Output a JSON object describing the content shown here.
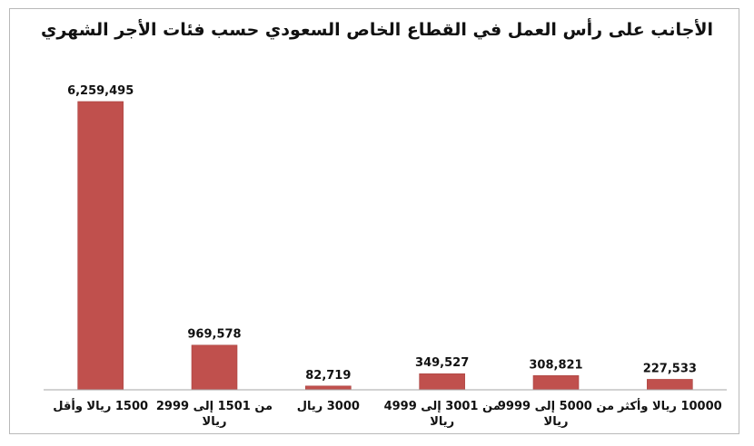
{
  "chart_data": {
    "type": "bar",
    "title": "الأجانب على رأس العمل في القطاع الخاص السعودي حسب فئات الأجر الشهري",
    "xlabel": "",
    "ylabel": "",
    "categories": [
      [
        "1500 ريالا وأقل"
      ],
      [
        "من 1501 إلى 2999",
        "ريالا"
      ],
      [
        "3000 ريال"
      ],
      [
        "من 3001 إلى 4999",
        "ريالا"
      ],
      [
        "من 5000 إلى 9999",
        "ريالا"
      ],
      [
        "10000 ريالا وأكثر"
      ]
    ],
    "values": [
      6259495,
      969578,
      82719,
      349527,
      308821,
      227533
    ],
    "value_labels": [
      "6,259,495",
      "969,578",
      "82,719",
      "349,527",
      "308,821",
      "227,533"
    ],
    "ylim": [
      0,
      6259495
    ],
    "grid": false,
    "legend": "none",
    "bar_color": "#c0504d"
  }
}
